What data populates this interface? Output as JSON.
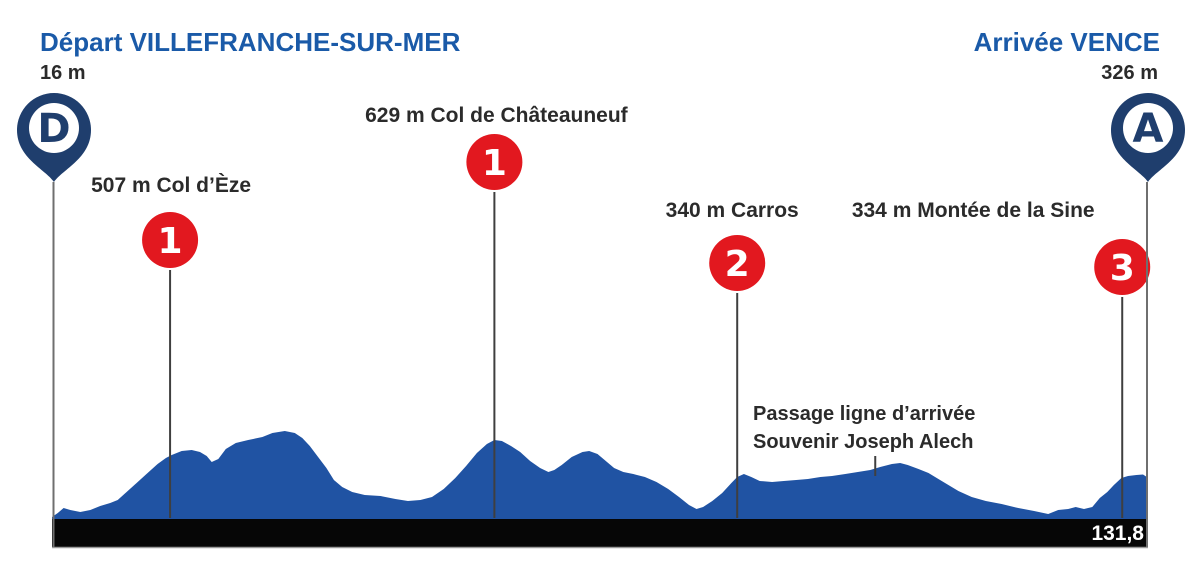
{
  "header": {
    "depart_label": "Départ VILLEFRANCHE-SUR-MER",
    "depart_elevation": "16 m",
    "arrivee_label": "Arrivée VENCE",
    "arrivee_elevation": "326 m"
  },
  "markers": {
    "start_letter": "D",
    "finish_letter": "A"
  },
  "climbs": [
    {
      "label": "507 m Col d’Èze",
      "category": "1",
      "km": 14.2
    },
    {
      "label": "629 m Col de Châteauneuf",
      "category": "1",
      "km": 53.2
    },
    {
      "label": "340 m Carros",
      "category": "2",
      "km": 82.4
    },
    {
      "label": "334 m Montée de la Sine",
      "category": "3",
      "km": 128.7
    }
  ],
  "finish_line_note": {
    "line1": "Passage ligne d’arrivée",
    "line2": "Souvenir Joseph Alech",
    "km": 99.0
  },
  "distance_label": "131,8",
  "colors": {
    "title_blue": "#1a5aa8",
    "pin_navy": "#1f3e6d",
    "profile_blue": "#2053a3",
    "category_red": "#e2181f",
    "text_dark": "#2b2b2b",
    "bar_black": "#060606",
    "line_gray": "#6f6f6f",
    "white": "#ffffff"
  },
  "chart_data": {
    "type": "area",
    "x_unit": "km",
    "y_unit": "m",
    "x_range": [
      0,
      131.8
    ],
    "total_distance_km": 131.8,
    "grid": false,
    "start": {
      "name": "Villefranche-sur-Mer",
      "elevation_m": 16,
      "km": 0
    },
    "finish": {
      "name": "Vence",
      "elevation_m": 326,
      "km": 131.8
    },
    "climbs": [
      {
        "name": "Col d’Èze",
        "elevation_m": 507,
        "category": 1,
        "km": 14.2
      },
      {
        "name": "Col de Châteauneuf",
        "elevation_m": 629,
        "category": 1,
        "km": 53.2
      },
      {
        "name": "Carros",
        "elevation_m": 340,
        "category": 2,
        "km": 82.4
      },
      {
        "name": "Montée de la Sine",
        "elevation_m": 334,
        "category": 3,
        "km": 128.7
      }
    ],
    "waypoints": [
      {
        "name": "Passage ligne d’arrivée – Souvenir Joseph Alech",
        "km": 99.0
      }
    ],
    "profile": [
      [
        0,
        16
      ],
      [
        0.7,
        48
      ],
      [
        1.4,
        88
      ],
      [
        2.2,
        72
      ],
      [
        3.4,
        56
      ],
      [
        4.6,
        72
      ],
      [
        5.8,
        104
      ],
      [
        7,
        128
      ],
      [
        7.9,
        152
      ],
      [
        9.1,
        224
      ],
      [
        10.3,
        296
      ],
      [
        11.5,
        368
      ],
      [
        12.7,
        440
      ],
      [
        13.7,
        488
      ],
      [
        14.4,
        512
      ],
      [
        15.6,
        544
      ],
      [
        16.8,
        552
      ],
      [
        17.8,
        536
      ],
      [
        18.6,
        504
      ],
      [
        19.2,
        456
      ],
      [
        20,
        480
      ],
      [
        20.9,
        560
      ],
      [
        22.1,
        608
      ],
      [
        23.6,
        632
      ],
      [
        25.3,
        656
      ],
      [
        26.5,
        688
      ],
      [
        28,
        704
      ],
      [
        29.2,
        688
      ],
      [
        30.1,
        648
      ],
      [
        31,
        584
      ],
      [
        32,
        496
      ],
      [
        33,
        408
      ],
      [
        33.9,
        312
      ],
      [
        34.9,
        256
      ],
      [
        36.1,
        216
      ],
      [
        37.6,
        192
      ],
      [
        39.5,
        184
      ],
      [
        41.3,
        160
      ],
      [
        42.8,
        144
      ],
      [
        44.3,
        152
      ],
      [
        45.7,
        176
      ],
      [
        47.1,
        240
      ],
      [
        48.5,
        328
      ],
      [
        49.8,
        424
      ],
      [
        51.1,
        528
      ],
      [
        52.3,
        600
      ],
      [
        53.2,
        632
      ],
      [
        54.1,
        624
      ],
      [
        55.2,
        584
      ],
      [
        56.3,
        536
      ],
      [
        57.5,
        464
      ],
      [
        58.7,
        408
      ],
      [
        59.7,
        376
      ],
      [
        60.4,
        392
      ],
      [
        61.3,
        432
      ],
      [
        62.5,
        496
      ],
      [
        63.8,
        536
      ],
      [
        64.6,
        544
      ],
      [
        65.6,
        520
      ],
      [
        66.6,
        464
      ],
      [
        67.6,
        408
      ],
      [
        68.7,
        376
      ],
      [
        69.9,
        360
      ],
      [
        71.3,
        336
      ],
      [
        72.7,
        296
      ],
      [
        74.1,
        240
      ],
      [
        75.4,
        176
      ],
      [
        76.6,
        112
      ],
      [
        77.5,
        80
      ],
      [
        78.3,
        96
      ],
      [
        79.4,
        144
      ],
      [
        80.6,
        208
      ],
      [
        81.7,
        288
      ],
      [
        82.4,
        336
      ],
      [
        83.2,
        360
      ],
      [
        84.1,
        336
      ],
      [
        85.1,
        304
      ],
      [
        86.6,
        296
      ],
      [
        88,
        304
      ],
      [
        89.5,
        312
      ],
      [
        90.9,
        320
      ],
      [
        92.4,
        336
      ],
      [
        93.8,
        344
      ],
      [
        95.4,
        360
      ],
      [
        96.9,
        376
      ],
      [
        98.4,
        392
      ],
      [
        99.6,
        416
      ],
      [
        101,
        440
      ],
      [
        102,
        448
      ],
      [
        102.9,
        432
      ],
      [
        104.2,
        400
      ],
      [
        105.4,
        368
      ],
      [
        106.6,
        320
      ],
      [
        107.8,
        272
      ],
      [
        109,
        224
      ],
      [
        110.6,
        176
      ],
      [
        112.3,
        144
      ],
      [
        114.2,
        120
      ],
      [
        116.2,
        88
      ],
      [
        118.1,
        64
      ],
      [
        119.8,
        40
      ],
      [
        121,
        72
      ],
      [
        122.2,
        80
      ],
      [
        123.1,
        96
      ],
      [
        124.1,
        80
      ],
      [
        125.1,
        96
      ],
      [
        126,
        168
      ],
      [
        126.9,
        216
      ],
      [
        127.7,
        272
      ],
      [
        128.6,
        328
      ],
      [
        129.4,
        344
      ],
      [
        130.4,
        352
      ],
      [
        131.2,
        356
      ],
      [
        131.8,
        330
      ]
    ]
  }
}
